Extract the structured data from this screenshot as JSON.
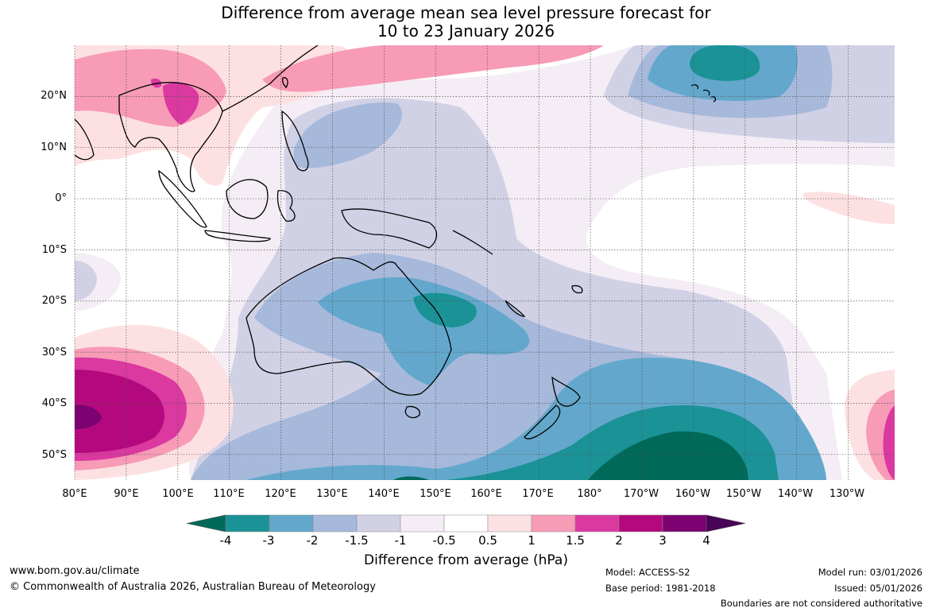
{
  "title_line1": "Difference from average mean sea level pressure forecast for",
  "title_line2": "10 to 23 January 2026",
  "map_data": {
    "lat_labels": [
      "20°N",
      "10°N",
      "0°",
      "10°S",
      "20°S",
      "30°S",
      "40°S",
      "50°S"
    ],
    "lon_labels": [
      "80°E",
      "90°E",
      "100°E",
      "110°E",
      "120°E",
      "130°E",
      "140°E",
      "150°E",
      "160°E",
      "170°E",
      "180°",
      "170°W",
      "160°W",
      "150°W",
      "140°W",
      "130°W"
    ],
    "lat_values": [
      20,
      10,
      0,
      -10,
      -20,
      -30,
      -40,
      -50
    ],
    "lon_values": [
      80,
      90,
      100,
      110,
      120,
      130,
      140,
      150,
      160,
      170,
      180,
      190,
      200,
      210,
      220,
      230
    ],
    "lat_range": [
      -55,
      30
    ],
    "lon_range": [
      80,
      239
    ]
  },
  "colorbar": {
    "title": "Difference from average (hPa)",
    "ticks": [
      "-4",
      "-3",
      "-2",
      "-1.5",
      "-1",
      "-0.5",
      "0.5",
      "1",
      "1.5",
      "2",
      "3",
      "4"
    ],
    "colors": [
      "#006959",
      "#1a9296",
      "#63a8cc",
      "#a6b9db",
      "#d1d1e6",
      "#f4edf5",
      "#ffffff",
      "#fde1e2",
      "#f79bb7",
      "#db38a0",
      "#b4097e",
      "#7b0270",
      "#480457"
    ]
  },
  "footer": {
    "website": "www.bom.gov.au/climate",
    "copyright": "© Commonwealth of Australia 2026, Australian Bureau of Meteorology",
    "model": "Model: ACCESS-S2",
    "base_period": "Base period: 1981-2018",
    "model_run": "Model run: 03/01/2026",
    "issued": "Issued: 05/01/2026",
    "disclaimer": "Boundaries are not considered authoritative"
  }
}
